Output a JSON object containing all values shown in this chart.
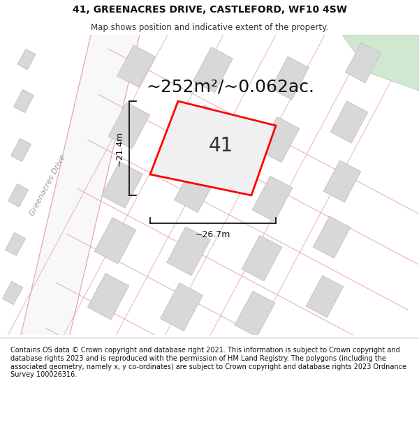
{
  "title": "41, GREENACRES DRIVE, CASTLEFORD, WF10 4SW",
  "subtitle": "Map shows position and indicative extent of the property.",
  "area_text": "~252m²/~0.062ac.",
  "label_41": "41",
  "dim_width": "~26.7m",
  "dim_height": "~21.4m",
  "road_label": "Greenacres Drive",
  "footer": "Contains OS data © Crown copyright and database right 2021. This information is subject to Crown copyright and database rights 2023 and is reproduced with the permission of HM Land Registry. The polygons (including the associated geometry, namely x, y co-ordinates) are subject to Crown copyright and database rights 2023 Ordnance Survey 100026316.",
  "bg_color": "#ffffff",
  "map_bg": "#ffffff",
  "building_fill": "#d8d8d8",
  "building_edge": "#c0c0c0",
  "road_line_color": "#e8a8a8",
  "highlight_fill": "#f0f0f0",
  "highlight_edge": "#ff0000",
  "green_area_color": "#d0e8d0",
  "footer_bg": "#ffffff",
  "title_fontsize": 10,
  "subtitle_fontsize": 8.5,
  "area_fontsize": 18,
  "label_fontsize": 20,
  "dim_fontsize": 9,
  "road_label_fontsize": 8,
  "footer_fontsize": 7.0,
  "map_road_bg": "#f5f5f5"
}
